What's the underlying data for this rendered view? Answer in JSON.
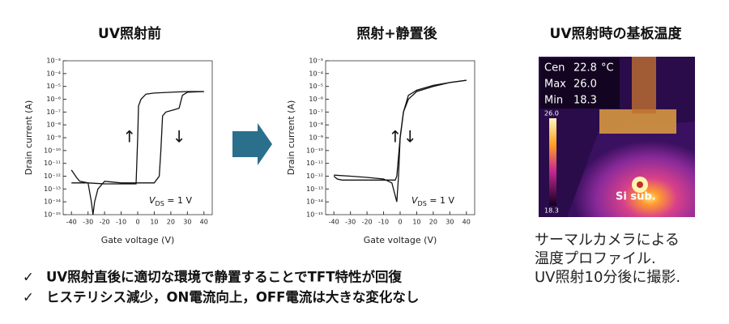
{
  "chart_data": [
    {
      "type": "line",
      "title": "UV照射前",
      "x_label": "Gate voltage (V)",
      "y_label": "Drain current (A)",
      "log_y": true,
      "xlim": [
        -45,
        45
      ],
      "xticks": [
        -40,
        -30,
        -20,
        -10,
        0,
        10,
        20,
        30,
        40
      ],
      "ylim": [
        1e-15,
        0.001
      ],
      "yticks": [
        {
          "value": 1e-15,
          "label": "10⁻¹⁵"
        },
        {
          "value": 1e-14,
          "label": "10⁻¹⁴"
        },
        {
          "value": 1e-13,
          "label": "10⁻¹³"
        },
        {
          "value": 1e-12,
          "label": "10⁻¹²"
        },
        {
          "value": 1e-11,
          "label": "10⁻¹¹"
        },
        {
          "value": 1e-10,
          "label": "10⁻¹⁰"
        },
        {
          "value": 1e-09,
          "label": "10⁻⁹"
        },
        {
          "value": 1e-08,
          "label": "10⁻⁸"
        },
        {
          "value": 1e-07,
          "label": "10⁻⁷"
        },
        {
          "value": 1e-06,
          "label": "10⁻⁶"
        },
        {
          "value": 1e-05,
          "label": "10⁻⁵"
        },
        {
          "value": 0.0001,
          "label": "10⁻⁴"
        },
        {
          "value": 0.001,
          "label": "10⁻³"
        }
      ],
      "annotations": [
        "↑",
        "↓"
      ],
      "condition": {
        "symbol": "V",
        "subscript": "DS",
        "rest": " = 1 V"
      },
      "series": [
        {
          "color": "#111111",
          "x": [
            -40,
            -37,
            -35,
            -30,
            -20,
            -10,
            -1,
            0,
            0.5,
            2,
            5,
            10,
            20,
            30,
            40
          ],
          "values": [
            3e-12,
            8e-13,
            4e-13,
            3e-13,
            2.5e-13,
            2.5e-13,
            2.5e-13,
            1e-09,
            3e-07,
            1e-06,
            2.5e-06,
            3e-06,
            3.5e-06,
            4e-06,
            4e-06
          ]
        },
        {
          "color": "#111111",
          "x": [
            40,
            30,
            27,
            25,
            22,
            17,
            15,
            14,
            13,
            10,
            0,
            -10,
            -20,
            -24,
            -26,
            -27,
            -28,
            -30,
            -35,
            -40
          ],
          "values": [
            4e-06,
            3.5e-06,
            2e-06,
            2e-07,
            1.5e-07,
            1e-07,
            5e-08,
            1e-10,
            1e-12,
            3e-13,
            3e-13,
            3e-13,
            4e-13,
            1e-13,
            1e-14,
            1e-15,
            1e-14,
            3e-13,
            3e-13,
            3e-13
          ]
        }
      ]
    },
    {
      "type": "line",
      "title": "照射+静置後",
      "x_label": "Gate voltage (V)",
      "y_label": "Drain current (A)",
      "log_y": true,
      "xlim": [
        -45,
        45
      ],
      "xticks": [
        -40,
        -30,
        -20,
        -10,
        0,
        10,
        20,
        30,
        40
      ],
      "ylim": [
        1e-15,
        0.001
      ],
      "yticks": [
        {
          "value": 1e-15,
          "label": "10⁻¹⁵"
        },
        {
          "value": 1e-14,
          "label": "10⁻¹⁴"
        },
        {
          "value": 1e-13,
          "label": "10⁻¹³"
        },
        {
          "value": 1e-12,
          "label": "10⁻¹²"
        },
        {
          "value": 1e-11,
          "label": "10⁻¹¹"
        },
        {
          "value": 1e-10,
          "label": "10⁻¹⁰"
        },
        {
          "value": 1e-09,
          "label": "10⁻⁹"
        },
        {
          "value": 1e-08,
          "label": "10⁻⁸"
        },
        {
          "value": 1e-07,
          "label": "10⁻⁷"
        },
        {
          "value": 1e-06,
          "label": "10⁻⁶"
        },
        {
          "value": 1e-05,
          "label": "10⁻⁵"
        },
        {
          "value": 0.0001,
          "label": "10⁻⁴"
        },
        {
          "value": 0.001,
          "label": "10⁻³"
        }
      ],
      "annotations": [
        "↑",
        "↓"
      ],
      "condition": {
        "symbol": "V",
        "subscript": "DS",
        "rest": " = 1 V"
      },
      "series": [
        {
          "color": "#111111",
          "x": [
            -40,
            -38,
            -35,
            -20,
            -10,
            -3,
            -2,
            0,
            2,
            5,
            10,
            20,
            30,
            40
          ],
          "values": [
            1e-12,
            6e-13,
            5e-13,
            5e-13,
            5e-13,
            5e-13,
            1e-12,
            1e-09,
            1e-07,
            1e-06,
            4e-06,
            1e-05,
            2e-05,
            3e-05
          ]
        },
        {
          "color": "#111111",
          "x": [
            40,
            30,
            20,
            10,
            5,
            2,
            0,
            -1,
            -2,
            -3,
            -5,
            -10,
            -20,
            -30,
            -40
          ],
          "values": [
            3e-05,
            2e-05,
            1.2e-05,
            5e-06,
            2e-06,
            1e-07,
            1e-09,
            1e-12,
            1e-14,
            3e-14,
            3e-13,
            6e-13,
            8e-13,
            1e-12,
            1.2e-12
          ]
        }
      ]
    }
  ],
  "thermal": {
    "title": "UV照射時の基板温度",
    "readings": [
      {
        "label": "Cen",
        "value": "22.8",
        "unit": "°C"
      },
      {
        "label": "Max",
        "value": "26.0"
      },
      {
        "label": "Min",
        "value": "18.3"
      }
    ],
    "scale_max": "26.0",
    "scale_min": "18.3",
    "sample_label": "Si sub.",
    "caption": [
      "サーマルカメラによる",
      "温度プロファイル.",
      "UV照射10分後に撮影."
    ]
  },
  "bullets": [
    {
      "mark": "✓",
      "text": "UV照射直後に適切な環境で静置することでTFT特性が回復"
    },
    {
      "mark": "✓",
      "text": "ヒステリシス減少，ON電流向上，OFF電流は大きな変化なし"
    }
  ]
}
